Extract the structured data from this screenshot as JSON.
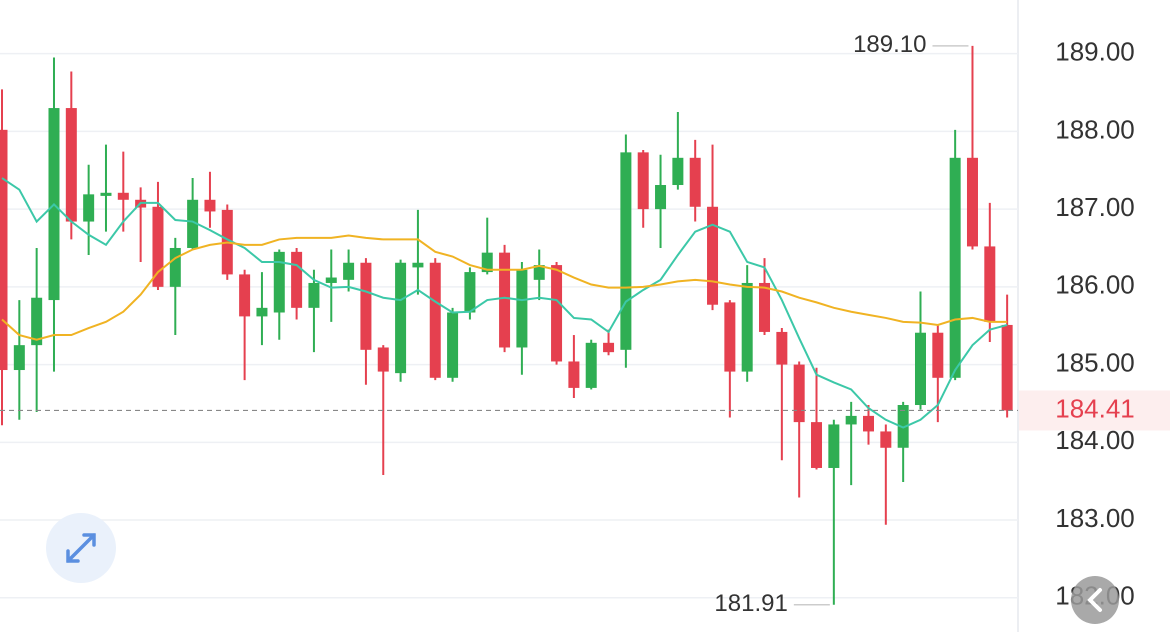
{
  "chart_data": {
    "type": "candlestick",
    "up_color": "#2fae53",
    "down_color": "#e5404f",
    "open": [
      188.02,
      184.93,
      185.25,
      185.83,
      188.3,
      186.84,
      187.17,
      187.21,
      187.12,
      187.03,
      186.0,
      186.5,
      187.12,
      186.99,
      186.16,
      185.62,
      185.67,
      186.45,
      185.73,
      186.05,
      186.09,
      186.31,
      185.22,
      184.89,
      186.25,
      186.31,
      184.83,
      185.67,
      186.19,
      186.44,
      185.22,
      186.09,
      186.28,
      185.04,
      184.7,
      185.28,
      185.19,
      187.73,
      187.0,
      187.31,
      187.66,
      187.03,
      185.8,
      184.91,
      186.05,
      185.42,
      185.0,
      184.26,
      183.67,
      184.23,
      184.34,
      184.14,
      183.93,
      184.48,
      185.41,
      184.83,
      187.66,
      186.52,
      185.51
    ],
    "high": [
      188.54,
      185.83,
      186.5,
      188.95,
      188.77,
      187.57,
      187.83,
      187.74,
      187.28,
      187.35,
      186.63,
      187.4,
      187.48,
      187.06,
      186.22,
      186.19,
      186.48,
      186.5,
      186.22,
      186.48,
      186.48,
      186.37,
      185.25,
      186.35,
      186.99,
      186.37,
      185.73,
      186.25,
      186.89,
      186.54,
      186.32,
      186.48,
      186.32,
      185.38,
      185.32,
      185.45,
      187.96,
      187.76,
      187.7,
      188.25,
      187.89,
      187.83,
      185.83,
      186.28,
      186.37,
      185.47,
      185.04,
      184.96,
      184.29,
      184.52,
      184.48,
      184.23,
      184.52,
      185.94,
      185.51,
      188.02,
      189.1,
      187.08,
      185.9
    ],
    "low": [
      184.22,
      184.29,
      184.39,
      184.91,
      186.61,
      186.41,
      186.71,
      186.71,
      186.32,
      185.96,
      185.38,
      186.48,
      186.76,
      186.09,
      184.8,
      185.25,
      185.32,
      185.58,
      185.16,
      185.55,
      185.94,
      184.74,
      183.58,
      184.78,
      185.9,
      184.8,
      184.78,
      185.58,
      186.16,
      185.16,
      184.87,
      185.83,
      185.0,
      184.57,
      184.68,
      185.12,
      184.96,
      186.76,
      186.5,
      187.25,
      186.84,
      185.7,
      184.32,
      184.78,
      185.38,
      183.77,
      183.29,
      183.65,
      181.91,
      183.45,
      183.97,
      182.94,
      183.49,
      184.42,
      184.26,
      184.8,
      186.48,
      185.29,
      184.32
    ],
    "close": [
      184.93,
      185.25,
      185.86,
      188.3,
      186.84,
      187.19,
      187.21,
      187.12,
      187.02,
      186.0,
      186.5,
      187.12,
      186.97,
      186.16,
      185.62,
      185.73,
      186.45,
      185.73,
      186.05,
      186.12,
      186.31,
      185.19,
      184.91,
      186.31,
      186.31,
      184.83,
      185.67,
      186.19,
      186.44,
      185.22,
      186.22,
      186.28,
      185.04,
      184.7,
      185.28,
      185.16,
      187.73,
      187.0,
      187.31,
      187.66,
      187.03,
      185.77,
      184.91,
      186.05,
      185.42,
      185.0,
      184.26,
      183.67,
      184.23,
      184.34,
      184.14,
      183.93,
      184.48,
      185.41,
      184.83,
      187.66,
      186.52,
      185.55,
      184.41
    ],
    "lines": [
      {
        "color": "#3cc8a8",
        "values": [
          187.4,
          187.25,
          186.84,
          187.06,
          186.84,
          186.67,
          186.54,
          186.84,
          187.08,
          187.08,
          186.86,
          186.84,
          186.73,
          186.61,
          186.5,
          186.32,
          186.32,
          186.28,
          186.09,
          185.99,
          186.0,
          185.94,
          185.86,
          185.83,
          185.96,
          185.81,
          185.67,
          185.68,
          185.83,
          185.86,
          185.83,
          185.86,
          185.83,
          185.6,
          185.58,
          185.42,
          185.81,
          185.96,
          186.09,
          186.41,
          186.71,
          186.8,
          186.71,
          186.32,
          186.25,
          185.83,
          185.34,
          184.87,
          184.77,
          184.68,
          184.44,
          184.29,
          184.19,
          184.29,
          184.48,
          184.93,
          185.25,
          185.45,
          185.51
        ]
      },
      {
        "color": "#f0b323",
        "values": [
          185.58,
          185.38,
          185.32,
          185.38,
          185.38,
          185.47,
          185.55,
          185.68,
          185.9,
          186.19,
          186.37,
          186.48,
          186.54,
          186.57,
          186.54,
          186.54,
          186.61,
          186.63,
          186.63,
          186.63,
          186.66,
          186.63,
          186.61,
          186.61,
          186.61,
          186.45,
          186.39,
          186.28,
          186.22,
          186.22,
          186.22,
          186.27,
          186.22,
          186.12,
          186.03,
          185.99,
          185.99,
          186.0,
          186.03,
          186.07,
          186.09,
          186.07,
          186.03,
          186.0,
          185.99,
          185.94,
          185.86,
          185.8,
          185.73,
          185.68,
          185.64,
          185.6,
          185.55,
          185.54,
          185.51,
          185.58,
          185.6,
          185.55,
          185.55
        ]
      }
    ],
    "ylim": [
      181.56,
      189.69
    ],
    "yticks": [
      {
        "value": 182,
        "label": "182.00"
      },
      {
        "value": 183,
        "label": "183.00"
      },
      {
        "value": 184,
        "label": "184.00"
      },
      {
        "value": 185,
        "label": "185.00"
      },
      {
        "value": 186,
        "label": "186.00"
      },
      {
        "value": 187,
        "label": "187.00"
      },
      {
        "value": 188,
        "label": "188.00"
      },
      {
        "value": 189,
        "label": "189.00"
      }
    ],
    "grid": true,
    "max_annotation": {
      "value": 189.1,
      "label": "189.10"
    },
    "min_annotation": 181.91,
    "last_price": 184.41,
    "last_price_color": "#e5404f"
  }
}
